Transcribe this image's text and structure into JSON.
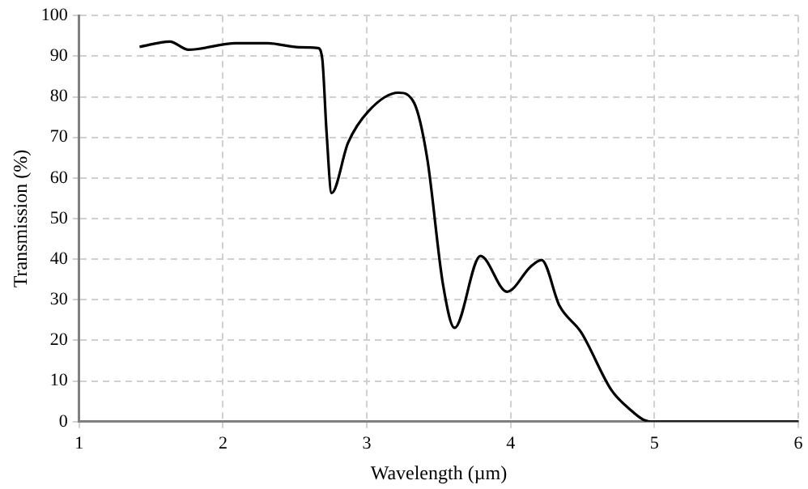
{
  "chart_data": {
    "type": "line",
    "xlabel": "Wavelength (µm)",
    "ylabel": "Transmission (%)",
    "xlim": [
      1,
      6
    ],
    "xticks": [
      1,
      2,
      3,
      4,
      5,
      6
    ],
    "ylim": [
      0,
      100
    ],
    "yticks": [
      0,
      10,
      20,
      30,
      40,
      50,
      60,
      70,
      80,
      90,
      100
    ],
    "grid": true,
    "legend": false,
    "marker": "none",
    "line_style": "solid",
    "series": [
      {
        "color": "#000000",
        "x": [
          1.42,
          1.63,
          1.76,
          2.09,
          2.31,
          2.53,
          2.66,
          2.69,
          2.72,
          2.755,
          2.87,
          3.01,
          3.22,
          3.33,
          3.42,
          3.53,
          3.61,
          3.79,
          3.975,
          4.14,
          4.215,
          4.34,
          4.49,
          4.7,
          4.82,
          4.97,
          6
        ],
        "values": [
          92.3,
          93.6,
          91.6,
          93.2,
          93.2,
          92.2,
          92,
          89.4,
          71.3,
          56.3,
          68.7,
          76.4,
          81,
          78.4,
          64.8,
          33.7,
          23.1,
          40.8,
          32,
          38.2,
          39.8,
          28.5,
          22,
          7.8,
          3.3,
          0,
          0
        ]
      }
    ]
  }
}
